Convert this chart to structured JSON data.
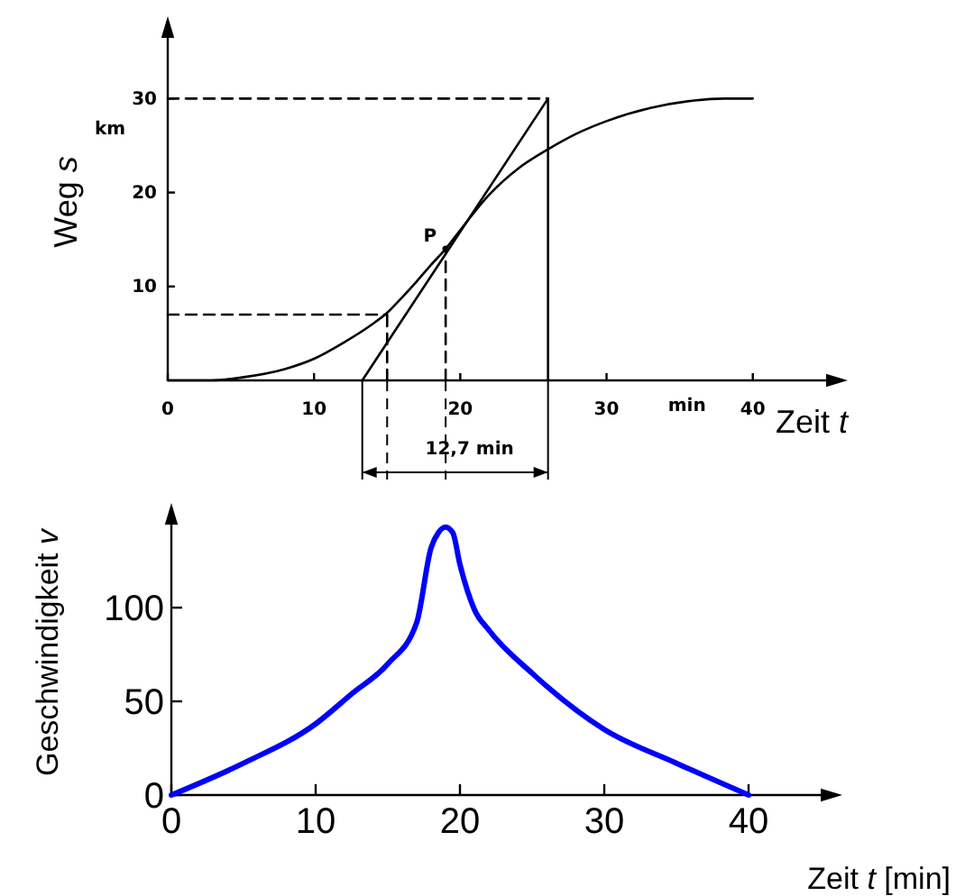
{
  "chart_data": [
    {
      "type": "line",
      "xlabel": "Zeit t",
      "ylabel": "Weg s",
      "xlim": [
        0,
        46
      ],
      "ylim": [
        0,
        38
      ],
      "xticks": [
        0,
        10,
        20,
        30,
        40
      ],
      "yticks": [
        10,
        20,
        30
      ],
      "grid": false,
      "series": [
        {
          "color": "#000000",
          "x": [
            0,
            3,
            5,
            8,
            10,
            12,
            14,
            15,
            16,
            17,
            18,
            19,
            20,
            22,
            24,
            26,
            28,
            30,
            33,
            36,
            38,
            40
          ],
          "values": [
            0,
            0,
            0.3,
            1.2,
            2.3,
            4,
            6,
            7.2,
            8.8,
            10.5,
            12.3,
            14,
            16,
            19.8,
            22.6,
            24.6,
            26.3,
            27.6,
            29,
            29.8,
            30,
            30
          ]
        },
        {
          "color": "#000000",
          "x": [
            13.3,
            26
          ],
          "values": [
            0,
            30
          ]
        },
        {
          "color": "#000000",
          "x": [
            0,
            26
          ],
          "values": [
            30,
            30
          ],
          "line_style": "dashed"
        },
        {
          "color": "#000000",
          "x": [
            26,
            26
          ],
          "values": [
            0,
            30
          ]
        },
        {
          "color": "#000000",
          "x": [
            0,
            15
          ],
          "values": [
            7,
            7
          ],
          "line_style": "dashed"
        },
        {
          "color": "#000000",
          "x": [
            15,
            15
          ],
          "values": [
            0,
            7
          ],
          "line_style": "dashed"
        },
        {
          "color": "#000000",
          "x": [
            19,
            19
          ],
          "values": [
            0,
            14
          ],
          "line_style": "dashed"
        }
      ],
      "annotations": [
        {
          "text": "P",
          "x": 19,
          "y": 14
        },
        "km",
        "min",
        "12,7 min"
      ]
    },
    {
      "type": "line",
      "xlabel": "Zeit t [min]",
      "ylabel": "Geschwindigkeit v",
      "xlim": [
        0,
        46
      ],
      "ylim": [
        0,
        152
      ],
      "xticks": [
        0,
        10,
        20,
        30,
        40
      ],
      "yticks": [
        0,
        50,
        100
      ],
      "grid": false,
      "series": [
        {
          "color": "#0000ff",
          "x": [
            0,
            5,
            10,
            12.5,
            15,
            17,
            18,
            18.5,
            19,
            19.5,
            20,
            21,
            22,
            25,
            30,
            35,
            40
          ],
          "values": [
            0,
            17,
            38,
            54,
            70,
            92,
            132,
            140,
            143,
            140,
            123,
            99,
            88,
            65,
            35,
            17,
            0
          ]
        }
      ]
    }
  ]
}
